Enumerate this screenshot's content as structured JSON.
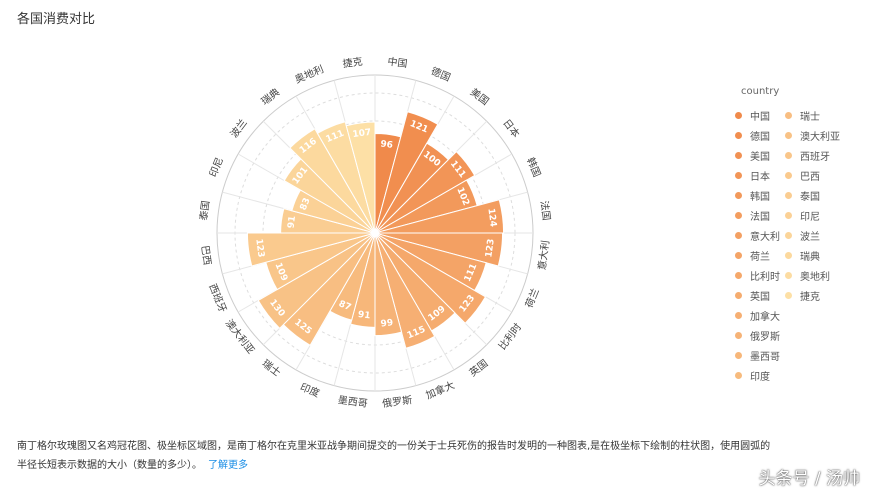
{
  "header": {
    "title": "各国消费对比"
  },
  "chart_data": {
    "type": "rose",
    "title": "各国消费对比",
    "legend_title": "country",
    "legend_position": "right",
    "categories": [
      "中国",
      "德国",
      "美国",
      "日本",
      "韩国",
      "法国",
      "意大利",
      "荷兰",
      "比利时",
      "英国",
      "加拿大",
      "俄罗斯",
      "墨西哥",
      "印度",
      "瑞士",
      "澳大利亚",
      "西班牙",
      "巴西",
      "泰国",
      "印尼",
      "波兰",
      "瑞典",
      "奥地利",
      "捷克"
    ],
    "values": [
      96,
      121,
      100,
      111,
      102,
      124,
      123,
      111,
      123,
      109,
      115,
      99,
      91,
      87,
      125,
      130,
      109,
      123,
      91,
      83,
      101,
      116,
      111,
      107
    ],
    "label_color": "#ffffff",
    "color_start": "#f08a4b",
    "color_end": "#fde0a6",
    "grid": true
  },
  "description": {
    "text": "南丁格尔玫瑰图又名鸡冠花图、极坐标区域图，是南丁格尔在克里米亚战争期间提交的一份关于士兵死伤的报告时发明的一种图表,是在极坐标下绘制的柱状图，使用圆弧的半径长短表示数据的大小（数量的多少）。",
    "link": "了解更多"
  },
  "watermark": "头条号 / 汤帅"
}
